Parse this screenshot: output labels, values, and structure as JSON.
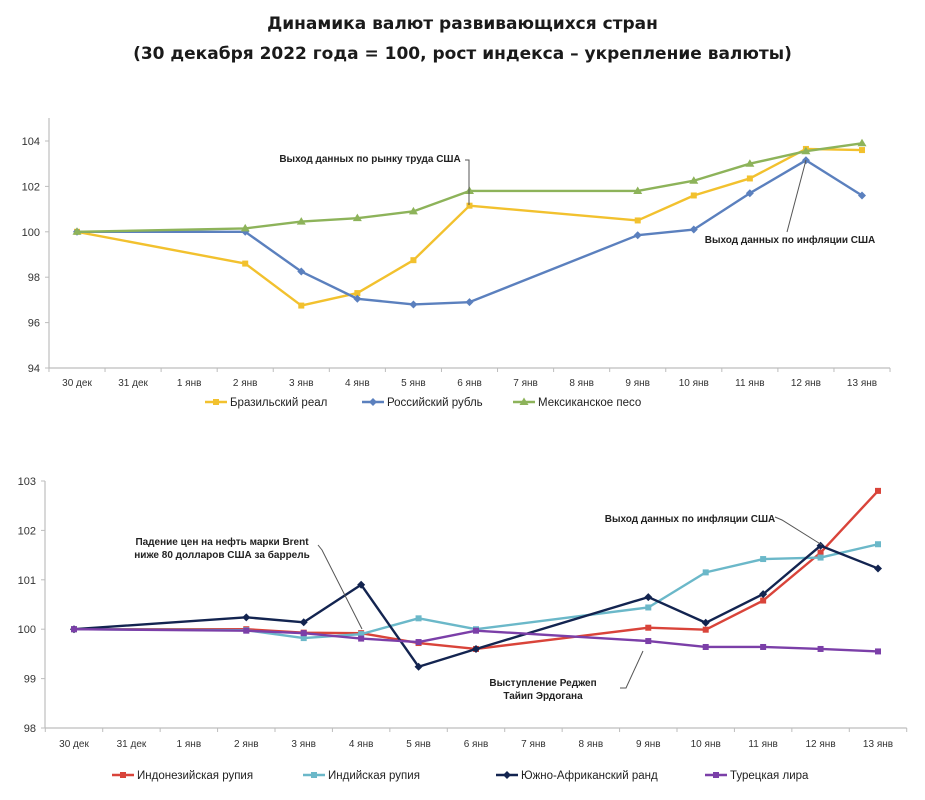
{
  "title": {
    "line1": "Динамика валют развивающихся стран",
    "line2": "(30 декабря 2022 года = 100, рост индекса – укрепление валюты)"
  },
  "chart_data": [
    {
      "type": "line",
      "categories": [
        "30 дек",
        "31 дек",
        "1 янв",
        "2 янв",
        "3 янв",
        "4 янв",
        "5 янв",
        "6 янв",
        "7 янв",
        "8 янв",
        "9 янв",
        "10 янв",
        "11 янв",
        "12 янв",
        "13 янв"
      ],
      "ylim": [
        94,
        104
      ],
      "yticks": [
        "94",
        "96",
        "98",
        "100",
        "102",
        "104"
      ],
      "grid": false,
      "legend": "bottom",
      "series": [
        {
          "name": "Бразильский реал",
          "color": "#F2C12E",
          "marker": "square",
          "values": [
            100,
            null,
            null,
            98.6,
            96.75,
            97.3,
            98.75,
            101.15,
            null,
            null,
            100.5,
            101.6,
            102.35,
            103.65,
            103.6
          ]
        },
        {
          "name": "Российский рубль",
          "color": "#5B80BE",
          "marker": "diamond",
          "values": [
            100,
            null,
            null,
            100.0,
            98.25,
            97.05,
            96.8,
            96.9,
            null,
            null,
            99.85,
            100.1,
            101.7,
            103.15,
            101.6
          ]
        },
        {
          "name": "Мексиканское песо",
          "color": "#8DB35A",
          "marker": "triangle",
          "values": [
            100,
            null,
            null,
            100.15,
            100.45,
            100.6,
            100.9,
            101.8,
            null,
            null,
            101.8,
            102.25,
            103.0,
            103.55,
            103.9
          ]
        }
      ],
      "annotations": [
        {
          "text": "Выход данных по рынку труда США",
          "category": "6 янв",
          "series": "Бразильский реал"
        },
        {
          "text": "Выход данных по инфляции США",
          "category": "12 янв",
          "series": "Российский рубль"
        }
      ]
    },
    {
      "type": "line",
      "categories": [
        "30 дек",
        "31 дек",
        "1 янв",
        "2 янв",
        "3 янв",
        "4 янв",
        "5 янв",
        "6 янв",
        "7 янв",
        "8 янв",
        "9 янв",
        "10 янв",
        "11 янв",
        "12 янв",
        "13 янв"
      ],
      "ylim": [
        98,
        103
      ],
      "yticks": [
        "98",
        "99",
        "100",
        "101",
        "102",
        "103"
      ],
      "grid": false,
      "legend": "bottom",
      "series": [
        {
          "name": "Индонезийская рупия",
          "color": "#D9443A",
          "marker": "square",
          "values": [
            100,
            null,
            null,
            100.0,
            99.93,
            99.92,
            99.72,
            99.6,
            null,
            null,
            100.03,
            99.99,
            100.58,
            101.55,
            102.8
          ]
        },
        {
          "name": "Индийская рупия",
          "color": "#6BB8C9",
          "marker": "square",
          "values": [
            100,
            null,
            null,
            99.98,
            99.82,
            99.9,
            100.22,
            100.0,
            null,
            null,
            100.44,
            101.15,
            101.42,
            101.45,
            101.72
          ]
        },
        {
          "name": "Южно-Африканский ранд",
          "color": "#132450",
          "marker": "diamond",
          "values": [
            100,
            null,
            null,
            100.24,
            100.14,
            100.9,
            99.24,
            99.6,
            null,
            null,
            100.65,
            100.13,
            100.71,
            101.69,
            101.23
          ]
        },
        {
          "name": "Турецкая лира",
          "color": "#7B3FA8",
          "marker": "square",
          "values": [
            100,
            null,
            null,
            99.97,
            99.92,
            99.81,
            99.74,
            99.97,
            null,
            null,
            99.76,
            99.64,
            99.64,
            99.6,
            99.55
          ]
        }
      ],
      "annotations": [
        {
          "text": "Падение цен на нефть  марки Brent ниже 80 долларов США за баррель",
          "lines": [
            "Падение цен на нефть  марки Brent",
            "ниже 80 долларов США за баррель"
          ],
          "category": "4 янв",
          "series": "Индонезийская рупия"
        },
        {
          "text": "Выход данных по инфляции США",
          "lines": [
            "Выход данных по инфляции США"
          ],
          "category": "12 янв",
          "series": "Южно-Африканский ранд"
        },
        {
          "text": "Выступление Реджеп Тайип Эрдогана",
          "lines": [
            "Выступление Реджеп",
            "Тайип Эрдогана"
          ],
          "category": "9 янв",
          "series": "Турецкая лира"
        }
      ]
    }
  ]
}
